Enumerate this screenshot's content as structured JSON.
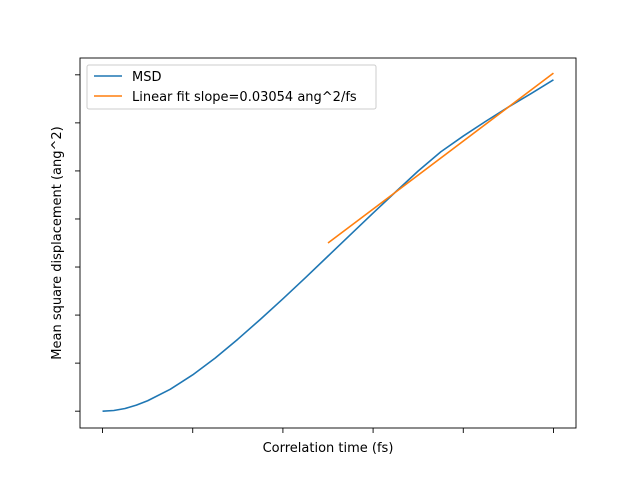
{
  "chart_data": {
    "type": "line",
    "title": "",
    "xlabel": "Correlation time (fs)",
    "ylabel": "Mean square displacement (ang^2)",
    "xlim": [
      -0.05,
      1.05
    ],
    "ylim": [
      -0.05,
      1.05
    ],
    "x_tick_count": 6,
    "y_tick_count": 8,
    "tick_labels_shown": false,
    "grid": false,
    "legend": {
      "position": "top-left",
      "entries": [
        "MSD",
        "Linear fit slope=0.03054 ang^2/fs"
      ]
    },
    "series": [
      {
        "name": "MSD",
        "color": "#1f77b4",
        "x": [
          0.0,
          0.025,
          0.05,
          0.075,
          0.1,
          0.15,
          0.2,
          0.25,
          0.3,
          0.35,
          0.4,
          0.45,
          0.5,
          0.55,
          0.6,
          0.65,
          0.7,
          0.75,
          0.8,
          0.85,
          0.9,
          0.95,
          1.0
        ],
        "y": [
          0.0,
          0.002,
          0.008,
          0.018,
          0.031,
          0.065,
          0.108,
          0.158,
          0.214,
          0.273,
          0.334,
          0.397,
          0.461,
          0.525,
          0.589,
          0.652,
          0.714,
          0.771,
          0.818,
          0.862,
          0.904,
          0.944,
          0.985
        ]
      },
      {
        "name": "Linear fit slope=0.03054 ang^2/fs",
        "color": "#ff7f0e",
        "x": [
          0.5,
          1.0
        ],
        "y": [
          0.5,
          1.005
        ]
      }
    ]
  }
}
